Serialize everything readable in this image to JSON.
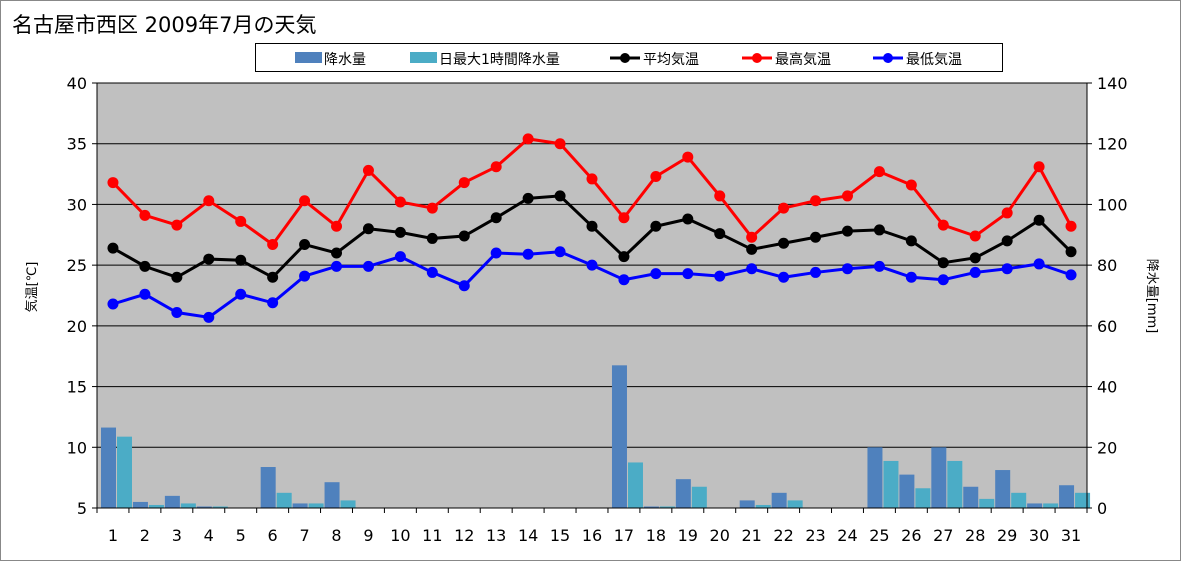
{
  "chart_data": {
    "type": "bar+line",
    "title": "名古屋市西区  2009年7月の天気",
    "ylabel_left": "気温[℃]",
    "ylabel_right": "降水量[mm]",
    "ylim_left": [
      5,
      40
    ],
    "yticks_left": [
      "5",
      "10",
      "15",
      "20",
      "25",
      "30",
      "35",
      "40"
    ],
    "ylim_right": [
      0,
      140
    ],
    "yticks_right": [
      "0",
      "20",
      "40",
      "60",
      "80",
      "100",
      "120",
      "140"
    ],
    "categories": [
      "1",
      "2",
      "3",
      "4",
      "5",
      "6",
      "7",
      "8",
      "9",
      "10",
      "11",
      "12",
      "13",
      "14",
      "15",
      "16",
      "17",
      "18",
      "19",
      "20",
      "21",
      "22",
      "23",
      "24",
      "25",
      "26",
      "27",
      "28",
      "29",
      "30",
      "31"
    ],
    "grid": "horizontal",
    "legend": "top",
    "bar_series": [
      {
        "name": "降水量",
        "color": "#4F81BD",
        "values": [
          26.5,
          2,
          4,
          0.5,
          0,
          13.5,
          1.5,
          8.5,
          0,
          0,
          0,
          0,
          0,
          0,
          0,
          0,
          47,
          0.5,
          9.5,
          0,
          2.5,
          5,
          0,
          0,
          20,
          11,
          20,
          7,
          12.5,
          1.5,
          7.5
        ]
      },
      {
        "name": "日最大1時間降水量",
        "color": "#4BACC6",
        "values": [
          23.5,
          1,
          1.5,
          0.5,
          0,
          5,
          1.5,
          2.5,
          0,
          0,
          0,
          0,
          0,
          0,
          0,
          0,
          15,
          0.5,
          7,
          0,
          1,
          2.5,
          0,
          0,
          15.5,
          6.5,
          15.5,
          3,
          5,
          1.5,
          5
        ]
      }
    ],
    "line_series": [
      {
        "name": "平均気温",
        "color": "#000000",
        "values": [
          26.4,
          24.9,
          24.0,
          25.5,
          25.4,
          24.0,
          26.7,
          26.0,
          28.0,
          27.7,
          27.2,
          27.4,
          28.9,
          30.5,
          30.7,
          28.2,
          25.7,
          28.2,
          28.8,
          27.6,
          26.3,
          26.8,
          27.3,
          27.8,
          27.9,
          27.0,
          25.2,
          25.6,
          27.0,
          28.7,
          26.1
        ]
      },
      {
        "name": "最高気温",
        "color": "#FF0000",
        "values": [
          31.8,
          29.1,
          28.3,
          30.3,
          28.6,
          26.7,
          30.3,
          28.2,
          32.8,
          30.2,
          29.7,
          31.8,
          33.1,
          35.4,
          35.0,
          32.1,
          28.9,
          32.3,
          33.9,
          30.7,
          27.3,
          29.7,
          30.3,
          30.7,
          32.7,
          31.6,
          28.3,
          27.4,
          29.3,
          33.1,
          28.2
        ]
      },
      {
        "name": "最低気温",
        "color": "#0000FF",
        "values": [
          21.8,
          22.6,
          21.1,
          20.7,
          22.6,
          21.9,
          24.1,
          24.9,
          24.9,
          25.7,
          24.4,
          23.3,
          26.0,
          25.9,
          26.1,
          25.0,
          23.8,
          24.3,
          24.3,
          24.1,
          24.7,
          24.0,
          24.4,
          24.7,
          24.9,
          24.0,
          23.8,
          24.4,
          24.7,
          25.1,
          24.2
        ]
      }
    ]
  }
}
